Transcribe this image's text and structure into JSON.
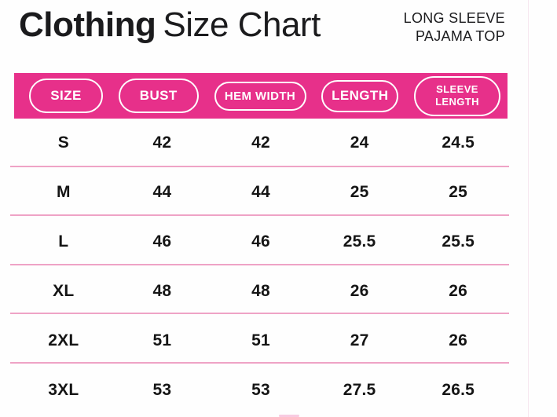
{
  "header": {
    "title_bold": "Clothing",
    "title_rest": "Size Chart",
    "product_line1": "LONG SLEEVE",
    "product_line2": "PAJAMA TOP"
  },
  "colors": {
    "accent_pink": "#E7308A",
    "separator_pink": "#EFA3C6",
    "text_dark": "#1B1B1D"
  },
  "table": {
    "columns": [
      {
        "label": "SIZE"
      },
      {
        "label": "BUST"
      },
      {
        "label": "HEM WIDTH"
      },
      {
        "label": "LENGTH"
      },
      {
        "label_line1": "SLEEVE",
        "label_line2": "LENGTH"
      }
    ],
    "rows": [
      {
        "size": "S",
        "bust": "42",
        "hem_width": "42",
        "length": "24",
        "sleeve_length": "24.5"
      },
      {
        "size": "M",
        "bust": "44",
        "hem_width": "44",
        "length": "25",
        "sleeve_length": "25"
      },
      {
        "size": "L",
        "bust": "46",
        "hem_width": "46",
        "length": "25.5",
        "sleeve_length": "25.5"
      },
      {
        "size": "XL",
        "bust": "48",
        "hem_width": "48",
        "length": "26",
        "sleeve_length": "26"
      },
      {
        "size": "2XL",
        "bust": "51",
        "hem_width": "51",
        "length": "27",
        "sleeve_length": "26"
      },
      {
        "size": "3XL",
        "bust": "53",
        "hem_width": "53",
        "length": "27.5",
        "sleeve_length": "26.5"
      }
    ]
  },
  "chart_data": {
    "type": "table",
    "title": "Clothing Size Chart",
    "subtitle": "LONG SLEEVE PAJAMA TOP",
    "columns": [
      "SIZE",
      "BUST",
      "HEM WIDTH",
      "LENGTH",
      "SLEEVE LENGTH"
    ],
    "rows": [
      [
        "S",
        42,
        42,
        24,
        24.5
      ],
      [
        "M",
        44,
        44,
        25,
        25
      ],
      [
        "L",
        46,
        46,
        25.5,
        25.5
      ],
      [
        "XL",
        48,
        48,
        26,
        26
      ],
      [
        "2XL",
        51,
        51,
        27,
        26
      ],
      [
        "3XL",
        53,
        53,
        27.5,
        26.5
      ]
    ]
  }
}
